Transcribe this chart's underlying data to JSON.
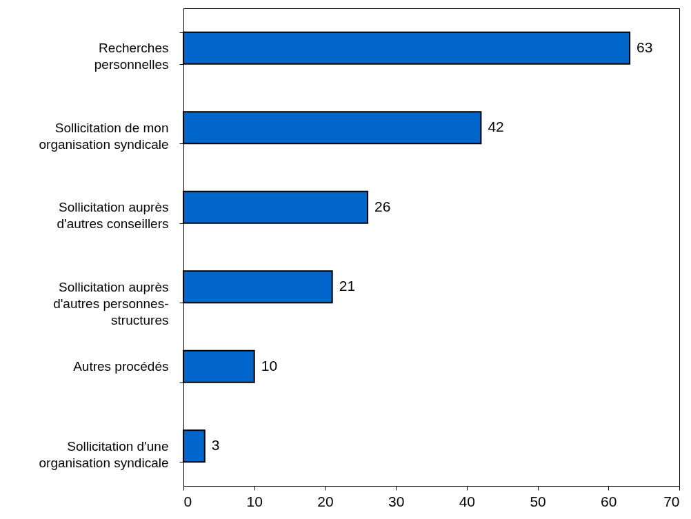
{
  "chart_data": {
    "type": "bar",
    "orientation": "horizontal",
    "categories": [
      "Recherches\npersonnelles",
      "Sollicitation de  mon\norganisation syndicale",
      "Sollicitation auprès\nd'autres conseillers",
      "Sollicitation auprès\nd'autres personnes-\nstructures",
      "Autres procédés",
      "Sollicitation d'une\norganisation syndicale"
    ],
    "values": [
      63,
      42,
      26,
      21,
      10,
      3
    ],
    "color": "#0066cc",
    "xlim": [
      0,
      70
    ],
    "xticks": [
      0,
      10,
      20,
      30,
      40,
      50,
      60,
      70
    ],
    "data_labels": true,
    "grid": false
  }
}
